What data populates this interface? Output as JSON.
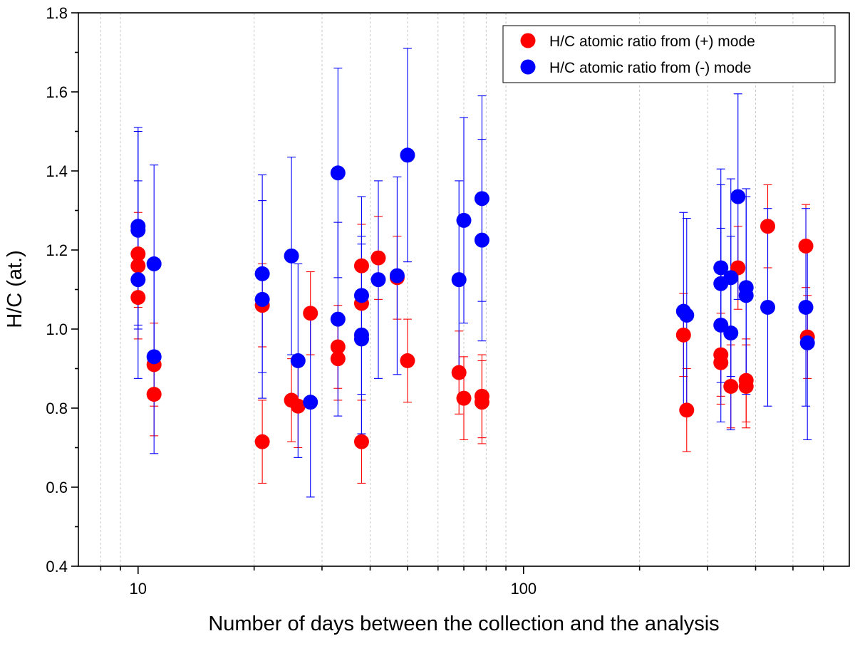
{
  "chart_data": {
    "type": "scatter",
    "title": "",
    "xlabel": "Number of days between the collection and the analysis",
    "ylabel": "H/C (at.)",
    "xscale": "log",
    "xlim": [
      7,
      700
    ],
    "ylim": [
      0.4,
      1.8
    ],
    "yticks": [
      0.4,
      0.6,
      0.8,
      1.0,
      1.2,
      1.4,
      1.6,
      1.8
    ],
    "ytick_labels": [
      "0.4",
      "0.6",
      "0.8",
      "1.0",
      "1.2",
      "1.4",
      "1.6",
      "1.8"
    ],
    "xticks": [
      10,
      100
    ],
    "xtick_labels": [
      "10",
      "100"
    ],
    "grid": "vertical minor dashed",
    "legend_position": "top-right",
    "series": [
      {
        "name": "H/C atomic ratio from (+) mode",
        "color": "#ff0000",
        "points": [
          {
            "x": 10,
            "y": 1.19,
            "err": 0.105
          },
          {
            "x": 10,
            "y": 1.16,
            "err": 0.105
          },
          {
            "x": 10,
            "y": 1.08,
            "err": 0.105
          },
          {
            "x": 11,
            "y": 0.91,
            "err": 0.105
          },
          {
            "x": 11,
            "y": 0.835,
            "err": 0.105
          },
          {
            "x": 21,
            "y": 1.06,
            "err": 0.105
          },
          {
            "x": 21,
            "y": 0.715,
            "err": 0.105
          },
          {
            "x": 25,
            "y": 0.82,
            "err": 0.105
          },
          {
            "x": 26,
            "y": 0.805,
            "err": 0.105
          },
          {
            "x": 28,
            "y": 1.04,
            "err": 0.105
          },
          {
            "x": 33,
            "y": 0.955,
            "err": 0.105
          },
          {
            "x": 33,
            "y": 0.925,
            "err": 0.105
          },
          {
            "x": 38,
            "y": 1.16,
            "err": 0.105
          },
          {
            "x": 38,
            "y": 1.065,
            "err": 0.105
          },
          {
            "x": 38,
            "y": 0.715,
            "err": 0.105
          },
          {
            "x": 42,
            "y": 1.18,
            "err": 0.105
          },
          {
            "x": 47,
            "y": 1.13,
            "err": 0.105
          },
          {
            "x": 50,
            "y": 0.92,
            "err": 0.105
          },
          {
            "x": 68,
            "y": 0.89,
            "err": 0.105
          },
          {
            "x": 70,
            "y": 0.825,
            "err": 0.105
          },
          {
            "x": 78,
            "y": 0.83,
            "err": 0.105
          },
          {
            "x": 78,
            "y": 0.815,
            "err": 0.105
          },
          {
            "x": 260,
            "y": 0.985,
            "err": 0.105
          },
          {
            "x": 265,
            "y": 0.795,
            "err": 0.105
          },
          {
            "x": 325,
            "y": 0.935,
            "err": 0.105
          },
          {
            "x": 325,
            "y": 0.915,
            "err": 0.105
          },
          {
            "x": 345,
            "y": 0.855,
            "err": 0.105
          },
          {
            "x": 360,
            "y": 1.155,
            "err": 0.105
          },
          {
            "x": 378,
            "y": 0.87,
            "err": 0.105
          },
          {
            "x": 378,
            "y": 0.855,
            "err": 0.105
          },
          {
            "x": 430,
            "y": 1.26,
            "err": 0.105
          },
          {
            "x": 540,
            "y": 1.21,
            "err": 0.105
          },
          {
            "x": 545,
            "y": 0.98,
            "err": 0.105
          }
        ]
      },
      {
        "name": "H/C atomic ratio from (-) mode",
        "color": "#0000ff",
        "points": [
          {
            "x": 10,
            "y": 1.26,
            "err": 0.25
          },
          {
            "x": 10,
            "y": 1.25,
            "err": 0.25
          },
          {
            "x": 10,
            "y": 1.125,
            "err": 0.25
          },
          {
            "x": 11,
            "y": 1.165,
            "err": 0.25
          },
          {
            "x": 11,
            "y": 0.93,
            "err": 0.245
          },
          {
            "x": 21,
            "y": 1.14,
            "err": 0.25
          },
          {
            "x": 21,
            "y": 1.075,
            "err": 0.25
          },
          {
            "x": 25,
            "y": 1.185,
            "err": 0.25
          },
          {
            "x": 26,
            "y": 0.92,
            "err": 0.245
          },
          {
            "x": 28,
            "y": 0.815,
            "err": 0.24
          },
          {
            "x": 33,
            "y": 1.395,
            "err": 0.265
          },
          {
            "x": 33,
            "y": 1.025,
            "err": 0.245
          },
          {
            "x": 38,
            "y": 1.085,
            "err": 0.25
          },
          {
            "x": 38,
            "y": 0.985,
            "err": 0.25
          },
          {
            "x": 38,
            "y": 0.975,
            "err": 0.24
          },
          {
            "x": 42,
            "y": 1.125,
            "err": 0.25
          },
          {
            "x": 47,
            "y": 1.135,
            "err": 0.25
          },
          {
            "x": 50,
            "y": 1.44,
            "err": 0.27
          },
          {
            "x": 68,
            "y": 1.125,
            "err": 0.25
          },
          {
            "x": 70,
            "y": 1.275,
            "err": 0.26
          },
          {
            "x": 78,
            "y": 1.33,
            "err": 0.26
          },
          {
            "x": 78,
            "y": 1.225,
            "err": 0.255
          },
          {
            "x": 260,
            "y": 1.045,
            "err": 0.25
          },
          {
            "x": 265,
            "y": 1.035,
            "err": 0.245
          },
          {
            "x": 325,
            "y": 1.155,
            "err": 0.25
          },
          {
            "x": 325,
            "y": 1.115,
            "err": 0.25
          },
          {
            "x": 325,
            "y": 1.01,
            "err": 0.245
          },
          {
            "x": 345,
            "y": 1.13,
            "err": 0.25
          },
          {
            "x": 345,
            "y": 0.99,
            "err": 0.245
          },
          {
            "x": 360,
            "y": 1.335,
            "err": 0.26
          },
          {
            "x": 378,
            "y": 1.105,
            "err": 0.25
          },
          {
            "x": 378,
            "y": 1.085,
            "err": 0.25
          },
          {
            "x": 430,
            "y": 1.055,
            "err": 0.25
          },
          {
            "x": 540,
            "y": 1.055,
            "err": 0.25
          },
          {
            "x": 545,
            "y": 0.965,
            "err": 0.245
          }
        ]
      }
    ]
  }
}
